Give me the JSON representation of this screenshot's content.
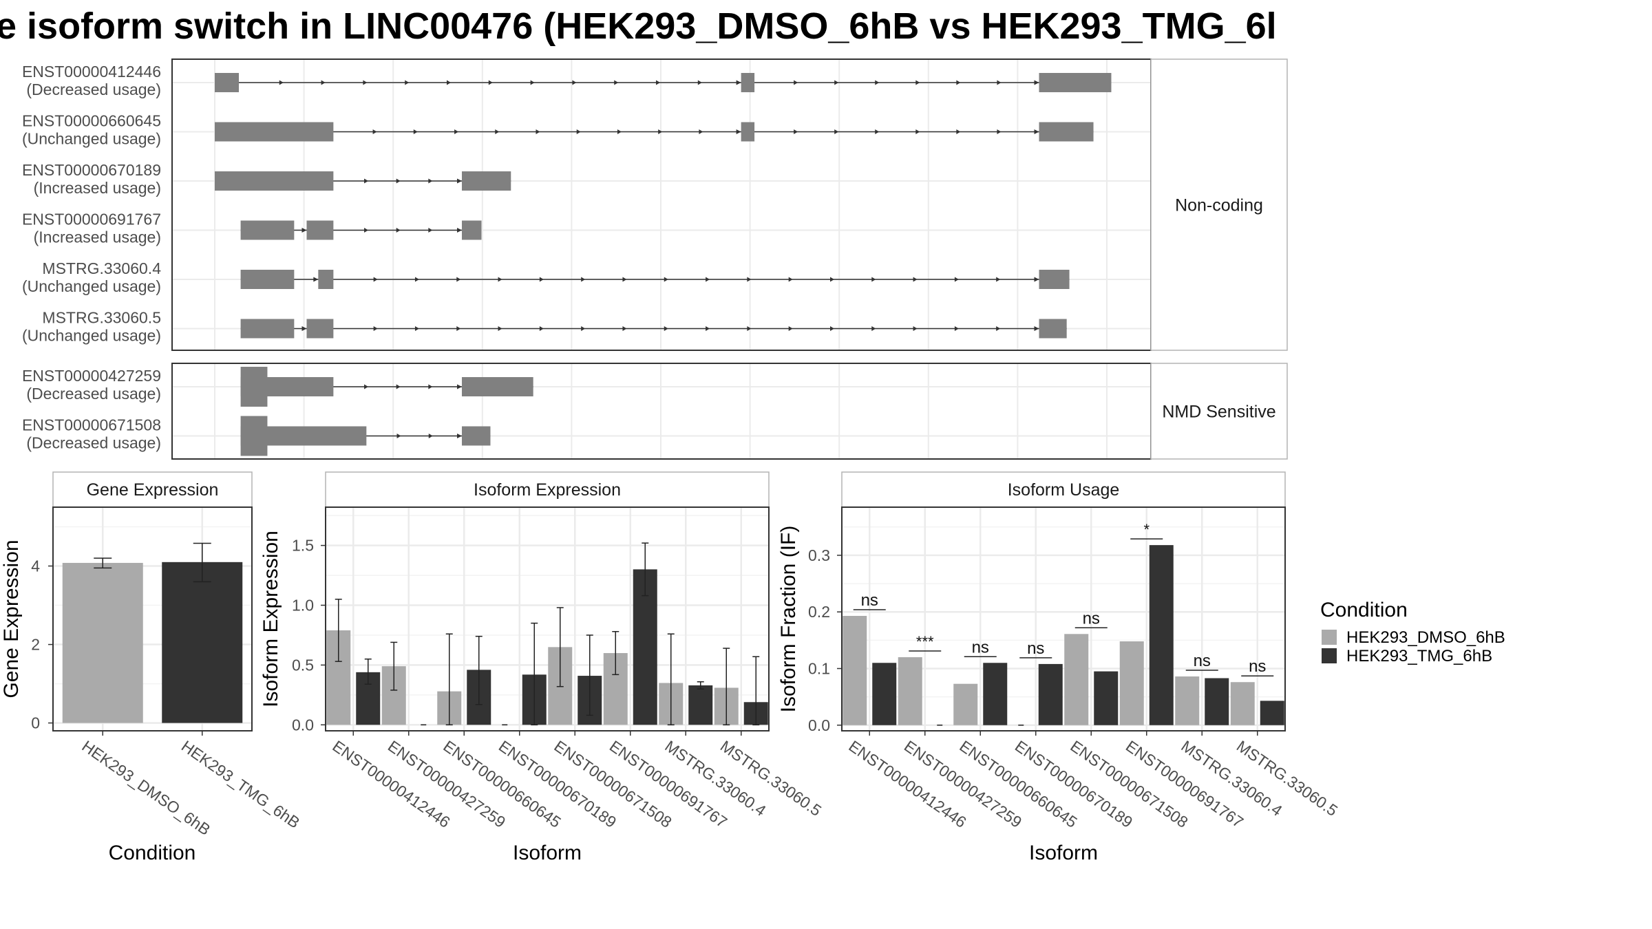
{
  "title": "e isoform switch in LINC00476 (HEK293_DMSO_6hB vs HEK293_TMG_6l",
  "colors": {
    "dmso": "#aaaaaa",
    "tmg": "#333333",
    "exon": "#808080",
    "grid": "#ebebeb",
    "panel_border": "#333333",
    "strip_border": "#b3b3b3"
  },
  "structure": {
    "x_range": [
      0,
      1000
    ],
    "groups": [
      {
        "label": "Non-coding",
        "isoforms": [
          {
            "name": "ENST00000412446",
            "status": "(Decreased usage)",
            "exons": [
              [
                0,
                27
              ],
              [
                590,
                605
              ],
              [
                924,
                1005
              ]
            ]
          },
          {
            "name": "ENST00000660645",
            "status": "(Unchanged usage)",
            "exons": [
              [
                0,
                133
              ],
              [
                590,
                605
              ],
              [
                924,
                985
              ]
            ]
          },
          {
            "name": "ENST00000670189",
            "status": "(Increased usage)",
            "exons": [
              [
                0,
                133
              ],
              [
                277,
                332
              ]
            ]
          },
          {
            "name": "ENST00000691767",
            "status": "(Increased usage)",
            "exons": [
              [
                29,
                89
              ],
              [
                103,
                133
              ],
              [
                277,
                299
              ]
            ]
          },
          {
            "name": "MSTRG.33060.4",
            "status": "(Unchanged usage)",
            "exons": [
              [
                29,
                89
              ],
              [
                116,
                133
              ],
              [
                924,
                958
              ]
            ]
          },
          {
            "name": "MSTRG.33060.5",
            "status": "(Unchanged usage)",
            "exons": [
              [
                29,
                89
              ],
              [
                103,
                133
              ],
              [
                924,
                955
              ]
            ]
          }
        ]
      },
      {
        "label": "NMD Sensitive",
        "isoforms": [
          {
            "name": "ENST00000427259",
            "status": "(Decreased usage)",
            "exons": [
              [
                29,
                133
              ],
              [
                277,
                357
              ]
            ],
            "tall_exon": [
              29,
              59
            ]
          },
          {
            "name": "ENST00000671508",
            "status": "(Decreased usage)",
            "exons": [
              [
                29,
                170
              ],
              [
                277,
                309
              ]
            ],
            "tall_exon": [
              29,
              59
            ]
          }
        ]
      }
    ]
  },
  "chart_data": [
    {
      "type": "bar",
      "title": "Gene Expression",
      "xlabel": "Condition",
      "ylabel": "Gene Expression",
      "ylim": [
        -0.2,
        5.5
      ],
      "yticks": [
        0,
        2,
        4
      ],
      "categories": [
        "HEK293_DMSO_6hB",
        "HEK293_TMG_6hB"
      ],
      "values": [
        4.08,
        4.1
      ],
      "error_low": [
        3.95,
        3.6
      ],
      "error_high": [
        4.2,
        4.58
      ]
    },
    {
      "type": "bar",
      "title": "Isoform Expression",
      "xlabel": "Isoform",
      "ylabel": "Isoform Expression",
      "ylim": [
        -0.05,
        1.82
      ],
      "yticks": [
        0.0,
        0.5,
        1.0,
        1.5
      ],
      "ytick_labels": [
        "0.0",
        "0.5",
        "1.0",
        "1.5"
      ],
      "categories": [
        "ENST00000412446",
        "ENST00000427259",
        "ENST00000660645",
        "ENST00000670189",
        "ENST00000671508",
        "ENST00000691767",
        "MSTRG.33060.4",
        "MSTRG.33060.5"
      ],
      "series": [
        {
          "name": "HEK293_DMSO_6hB",
          "values": [
            0.79,
            0.49,
            0.28,
            0.0,
            0.65,
            0.6,
            0.35,
            0.31
          ],
          "error_low": [
            0.53,
            0.29,
            0.0,
            0.0,
            0.32,
            0.42,
            0.0,
            0.0
          ],
          "error_high": [
            1.05,
            0.69,
            0.76,
            0.0,
            0.98,
            0.78,
            0.76,
            0.64
          ]
        },
        {
          "name": "HEK293_TMG_6hB",
          "values": [
            0.44,
            0.0,
            0.46,
            0.42,
            0.41,
            1.3,
            0.33,
            0.19
          ],
          "error_low": [
            0.34,
            0.0,
            0.17,
            0.0,
            0.08,
            1.08,
            0.3,
            0.0
          ],
          "error_high": [
            0.55,
            0.0,
            0.74,
            0.85,
            0.75,
            1.52,
            0.36,
            0.57
          ]
        }
      ]
    },
    {
      "type": "bar",
      "title": "Isoform Usage",
      "xlabel": "Isoform",
      "ylabel": "Isoform Fraction (IF)",
      "ylim": [
        -0.01,
        0.385
      ],
      "yticks": [
        0.0,
        0.1,
        0.2,
        0.3
      ],
      "ytick_labels": [
        "0.0",
        "0.1",
        "0.2",
        "0.3"
      ],
      "categories": [
        "ENST00000412446",
        "ENST00000427259",
        "ENST00000660645",
        "ENST00000670189",
        "ENST00000671508",
        "ENST00000691767",
        "MSTRG.33060.4",
        "MSTRG.33060.5"
      ],
      "series": [
        {
          "name": "HEK293_DMSO_6hB",
          "values": [
            0.193,
            0.12,
            0.073,
            0.0,
            0.161,
            0.148,
            0.086,
            0.076
          ]
        },
        {
          "name": "HEK293_TMG_6hB",
          "values": [
            0.11,
            0.0,
            0.11,
            0.108,
            0.095,
            0.318,
            0.083,
            0.043
          ]
        }
      ],
      "significance": [
        "ns",
        "***",
        "ns",
        "ns",
        "ns",
        "*",
        "ns",
        "ns"
      ]
    }
  ],
  "legend": {
    "title": "Condition",
    "entries": [
      "HEK293_DMSO_6hB",
      "HEK293_TMG_6hB"
    ]
  }
}
